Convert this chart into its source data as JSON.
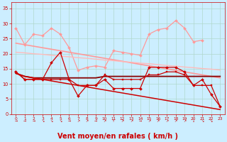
{
  "background_color": "#cceeff",
  "grid_color": "#b0d8cc",
  "xlabel": "Vent moyen/en rafales ( km/h )",
  "xlabel_color": "#cc0000",
  "xlabel_fontsize": 7.0,
  "tick_color": "#cc0000",
  "ylim": [
    0,
    37
  ],
  "xlim": [
    -0.5,
    23.5
  ],
  "yticks": [
    0,
    5,
    10,
    15,
    20,
    25,
    30,
    35
  ],
  "xticks": [
    0,
    1,
    2,
    3,
    4,
    5,
    6,
    7,
    8,
    9,
    10,
    11,
    12,
    13,
    14,
    15,
    16,
    17,
    18,
    19,
    20,
    21,
    22,
    23
  ],
  "lines": [
    {
      "comment": "light pink jagged line with diamond markers - rafales top",
      "y": [
        28.5,
        23.0,
        26.5,
        26.0,
        28.5,
        26.5,
        22.0,
        14.5,
        15.5,
        16.0,
        15.5,
        21.0,
        20.5,
        20.0,
        19.5,
        26.5,
        28.0,
        28.5,
        31.0,
        28.5,
        24.0,
        24.5,
        null,
        null
      ],
      "color": "#ff9999",
      "lw": 0.9,
      "marker": "D",
      "ms": 2.0,
      "zorder": 2
    },
    {
      "comment": "light pink upper trend line - straight declining",
      "y": [
        23.5,
        23.0,
        22.5,
        22.0,
        21.5,
        21.0,
        20.5,
        20.0,
        19.5,
        19.0,
        18.5,
        18.0,
        17.5,
        17.0,
        16.5,
        16.0,
        15.5,
        15.0,
        14.5,
        14.0,
        13.5,
        13.0,
        12.5,
        12.0
      ],
      "color": "#ff9999",
      "lw": 1.2,
      "marker": null,
      "ms": 0,
      "zorder": 2
    },
    {
      "comment": "light pink lower trend line - gentle decline",
      "y": [
        20.5,
        20.3,
        20.0,
        19.8,
        19.5,
        19.2,
        19.0,
        18.7,
        18.5,
        18.2,
        17.9,
        17.7,
        17.4,
        17.2,
        16.9,
        16.7,
        16.4,
        16.1,
        15.9,
        15.6,
        15.4,
        15.1,
        14.9,
        14.6
      ],
      "color": "#ffbbbb",
      "lw": 1.0,
      "marker": null,
      "ms": 0,
      "zorder": 2
    },
    {
      "comment": "dark red jagged line with diamond markers - vent moyen top",
      "y": [
        14.0,
        11.5,
        11.5,
        11.5,
        17.0,
        20.5,
        11.5,
        6.0,
        9.5,
        9.5,
        11.5,
        8.5,
        8.5,
        8.5,
        8.5,
        15.5,
        15.5,
        15.5,
        15.5,
        14.0,
        9.5,
        11.5,
        6.5,
        2.5
      ],
      "color": "#cc0000",
      "lw": 0.9,
      "marker": "D",
      "ms": 2.0,
      "zorder": 5
    },
    {
      "comment": "dark red square markers line",
      "y": [
        14.0,
        11.5,
        11.5,
        11.5,
        11.5,
        11.5,
        11.5,
        9.5,
        9.5,
        9.5,
        13.0,
        11.5,
        11.5,
        11.5,
        11.5,
        13.0,
        13.0,
        14.0,
        14.0,
        13.0,
        9.5,
        9.5,
        9.5,
        2.5
      ],
      "color": "#cc0000",
      "lw": 0.9,
      "marker": "s",
      "ms": 2.0,
      "zorder": 4
    },
    {
      "comment": "dark red upper horizontal trend",
      "y": [
        13.5,
        12.5,
        12.0,
        12.0,
        12.0,
        12.0,
        12.0,
        12.0,
        12.0,
        12.0,
        12.5,
        12.5,
        12.5,
        12.5,
        12.5,
        12.5,
        12.5,
        12.5,
        12.5,
        12.5,
        12.5,
        12.5,
        12.5,
        12.5
      ],
      "color": "#880000",
      "lw": 1.3,
      "marker": null,
      "ms": 0,
      "zorder": 3
    },
    {
      "comment": "dark red declining trend line steep",
      "y": [
        13.5,
        12.5,
        12.0,
        11.5,
        11.0,
        10.5,
        10.0,
        9.5,
        9.0,
        8.5,
        8.0,
        7.5,
        7.0,
        6.5,
        6.0,
        5.5,
        5.0,
        4.5,
        4.0,
        3.5,
        3.0,
        2.5,
        2.0,
        1.5
      ],
      "color": "#cc0000",
      "lw": 1.1,
      "marker": null,
      "ms": 0,
      "zorder": 3
    }
  ],
  "arrow_chars": [
    "→",
    "→",
    "→",
    "↘",
    "↘",
    "↘",
    "→",
    "↗",
    "↗",
    "→",
    "↗",
    "↑",
    "↗",
    "↗",
    "→",
    "↗",
    "↗",
    "↗",
    "↗",
    "↗",
    "↓",
    "↘",
    "↘",
    ""
  ]
}
